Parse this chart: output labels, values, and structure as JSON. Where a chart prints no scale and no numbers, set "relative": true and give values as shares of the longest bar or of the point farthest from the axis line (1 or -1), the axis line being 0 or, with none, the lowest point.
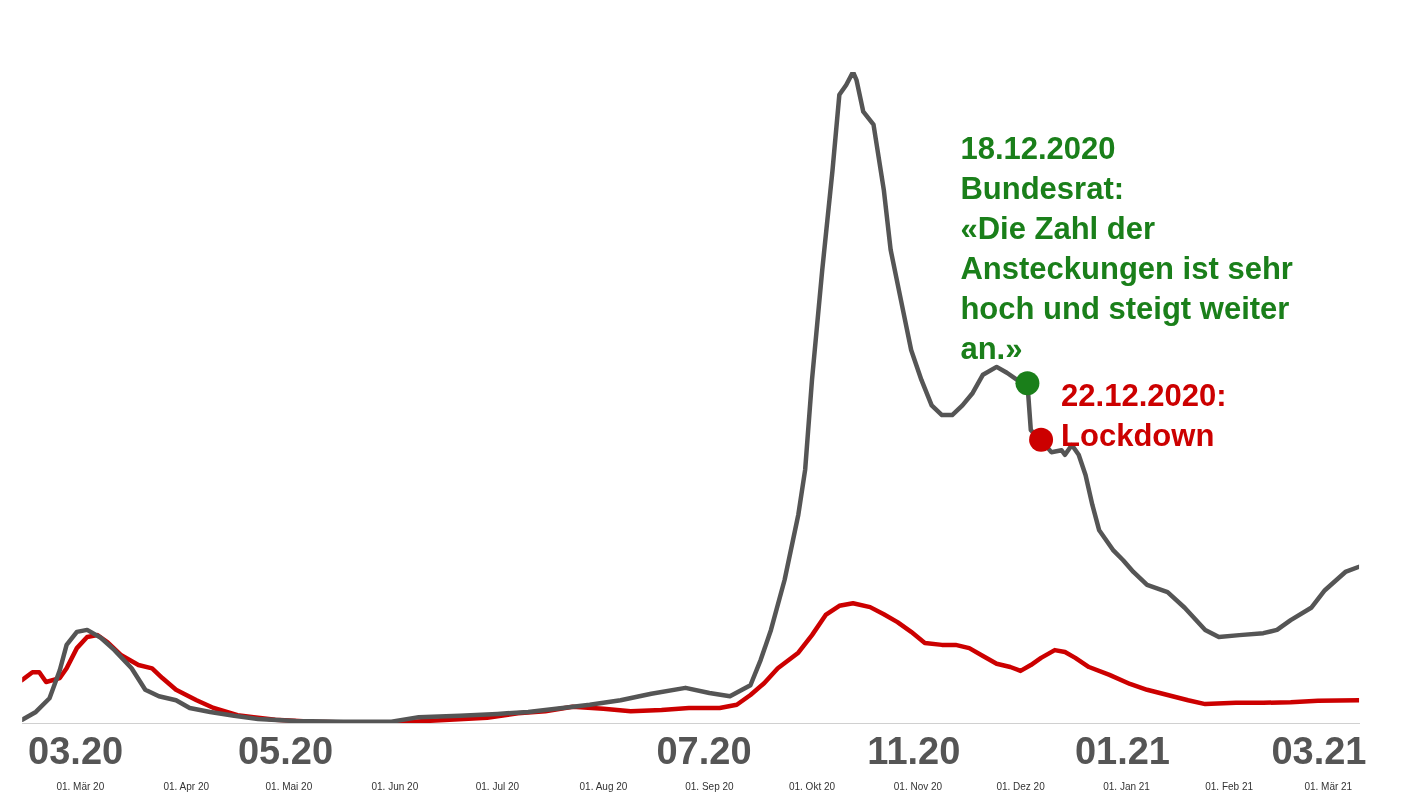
{
  "chart_data": {
    "type": "line",
    "relative": true,
    "legend": false,
    "marker": "none",
    "line_style": "solid",
    "xlim": [
      "2020-02-28",
      "2021-03-25"
    ],
    "xticks": [
      {
        "value": "2020-03-16",
        "label": "01. Mär 20"
      },
      {
        "value": "2020-04-16",
        "label": "01. Apr 20"
      },
      {
        "value": "2020-05-16",
        "label": "01. Mai 20"
      },
      {
        "value": "2020-06-16",
        "label": "01. Jun 20"
      },
      {
        "value": "2020-07-16",
        "label": "01. Jul 20"
      },
      {
        "value": "2020-08-16",
        "label": "01. Aug 20"
      },
      {
        "value": "2020-09-16",
        "label": "01. Sep 20"
      },
      {
        "value": "2020-10-16",
        "label": "01. Okt 20"
      },
      {
        "value": "2020-11-16",
        "label": "01. Nov 20"
      },
      {
        "value": "2020-12-16",
        "label": "01. Dez 20"
      },
      {
        "value": "2021-01-16",
        "label": "01. Jan 21"
      },
      {
        "value": "2021-02-15",
        "label": "01. Feb 21"
      },
      {
        "value": "2021-03-16",
        "label": "01. Mär 21"
      }
    ],
    "series": [
      {
        "color": "#555555",
        "x": [
          "2020-02-28",
          "2020-03-03",
          "2020-03-07",
          "2020-03-10",
          "2020-03-12",
          "2020-03-15",
          "2020-03-18",
          "2020-03-22",
          "2020-03-26",
          "2020-03-31",
          "2020-04-04",
          "2020-04-08",
          "2020-04-13",
          "2020-04-17",
          "2020-04-23",
          "2020-04-30",
          "2020-05-07",
          "2020-05-18",
          "2020-06-01",
          "2020-06-15",
          "2020-06-23",
          "2020-07-05",
          "2020-07-16",
          "2020-07-25",
          "2020-08-04",
          "2020-08-12",
          "2020-08-21",
          "2020-08-30",
          "2020-09-09",
          "2020-09-16",
          "2020-09-22",
          "2020-09-28",
          "2020-10-01",
          "2020-10-04",
          "2020-10-08",
          "2020-10-12",
          "2020-10-14",
          "2020-10-16",
          "2020-10-19",
          "2020-10-22",
          "2020-10-24",
          "2020-10-26",
          "2020-10-28",
          "2020-10-29",
          "2020-10-31",
          "2020-11-03",
          "2020-11-06",
          "2020-11-08",
          "2020-11-11",
          "2020-11-14",
          "2020-11-17",
          "2020-11-20",
          "2020-11-23",
          "2020-11-26",
          "2020-11-29",
          "2020-12-02",
          "2020-12-05",
          "2020-12-09",
          "2020-12-12",
          "2020-12-15",
          "2020-12-18",
          "2020-12-19",
          "2020-12-22",
          "2020-12-25",
          "2020-12-28",
          "2020-12-29",
          "2020-12-31",
          "2021-01-02",
          "2021-01-04",
          "2021-01-06",
          "2021-01-08",
          "2021-01-12",
          "2021-01-15",
          "2021-01-18",
          "2021-01-22",
          "2021-01-28",
          "2021-02-02",
          "2021-02-08",
          "2021-02-12",
          "2021-02-18",
          "2021-02-25",
          "2021-03-01",
          "2021-03-05",
          "2021-03-11",
          "2021-03-15",
          "2021-03-21",
          "2021-03-25"
        ],
        "values": [
          0.005,
          0.017,
          0.038,
          0.081,
          0.12,
          0.14,
          0.143,
          0.131,
          0.112,
          0.084,
          0.051,
          0.041,
          0.035,
          0.023,
          0.017,
          0.011,
          0.006,
          0.003,
          0.002,
          0.002,
          0.009,
          0.011,
          0.014,
          0.017,
          0.023,
          0.028,
          0.035,
          0.045,
          0.054,
          0.046,
          0.041,
          0.058,
          0.097,
          0.143,
          0.22,
          0.32,
          0.389,
          0.527,
          0.696,
          0.849,
          0.965,
          0.98,
          1,
          0.988,
          0.939,
          0.919,
          0.819,
          0.727,
          0.65,
          0.573,
          0.527,
          0.488,
          0.473,
          0.473,
          0.488,
          0.507,
          0.535,
          0.547,
          0.538,
          0.527,
          0.522,
          0.45,
          0.435,
          0.416,
          0.419,
          0.412,
          0.427,
          0.412,
          0.381,
          0.335,
          0.296,
          0.266,
          0.25,
          0.232,
          0.212,
          0.201,
          0.177,
          0.143,
          0.132,
          0.135,
          0.138,
          0.143,
          0.158,
          0.177,
          0.204,
          0.232,
          0.24
        ]
      },
      {
        "color": "#cc0000",
        "x": [
          "2020-02-28",
          "2020-03-02",
          "2020-03-04",
          "2020-03-06",
          "2020-03-10",
          "2020-03-12",
          "2020-03-15",
          "2020-03-18",
          "2020-03-21",
          "2020-03-24",
          "2020-03-28",
          "2020-04-02",
          "2020-04-06",
          "2020-04-09",
          "2020-04-13",
          "2020-04-19",
          "2020-04-24",
          "2020-05-01",
          "2020-05-12",
          "2020-05-23",
          "2020-06-09",
          "2020-06-21",
          "2020-07-02",
          "2020-07-13",
          "2020-07-22",
          "2020-07-30",
          "2020-08-07",
          "2020-08-16",
          "2020-08-24",
          "2020-09-02",
          "2020-09-10",
          "2020-09-19",
          "2020-09-24",
          "2020-09-28",
          "2020-10-02",
          "2020-10-06",
          "2020-10-12",
          "2020-10-16",
          "2020-10-20",
          "2020-10-24",
          "2020-10-28",
          "2020-11-02",
          "2020-11-06",
          "2020-11-10",
          "2020-11-14",
          "2020-11-18",
          "2020-11-23",
          "2020-11-27",
          "2020-12-01",
          "2020-12-05",
          "2020-12-09",
          "2020-12-13",
          "2020-12-16",
          "2020-12-19",
          "2020-12-22",
          "2020-12-26",
          "2020-12-29",
          "2021-01-01",
          "2021-01-05",
          "2021-01-11",
          "2021-01-17",
          "2021-01-22",
          "2021-01-28",
          "2021-02-03",
          "2021-02-08",
          "2021-02-17",
          "2021-02-25",
          "2021-03-05",
          "2021-03-13",
          "2021-03-25"
        ],
        "values": [
          0.066,
          0.078,
          0.078,
          0.063,
          0.069,
          0.084,
          0.115,
          0.132,
          0.135,
          0.124,
          0.104,
          0.089,
          0.084,
          0.069,
          0.051,
          0.035,
          0.023,
          0.012,
          0.005,
          0.002,
          0,
          0.002,
          0.005,
          0.008,
          0.015,
          0.018,
          0.025,
          0.022,
          0.018,
          0.02,
          0.023,
          0.023,
          0.028,
          0.043,
          0.061,
          0.084,
          0.108,
          0.135,
          0.166,
          0.18,
          0.184,
          0.178,
          0.167,
          0.155,
          0.14,
          0.123,
          0.12,
          0.12,
          0.115,
          0.103,
          0.091,
          0.086,
          0.08,
          0.089,
          0.1,
          0.112,
          0.109,
          0.1,
          0.086,
          0.074,
          0.06,
          0.051,
          0.043,
          0.035,
          0.029,
          0.031,
          0.031,
          0.032,
          0.034,
          0.035
        ]
      }
    ],
    "annotations": [
      {
        "text": "18.12.2020\nBundesrat:\n«Die Zahl der\nAnsteckungen ist sehr\nhoch und steigt weiter\nan.»",
        "x": "2020-12-18",
        "y": 0.522
      },
      {
        "text": "22.12.2020:\nLockdown",
        "x": "2020-12-22",
        "y": 0.435
      },
      "03.20",
      "05.20",
      "07.20",
      "11.20",
      "01.21",
      "03.21"
    ]
  }
}
